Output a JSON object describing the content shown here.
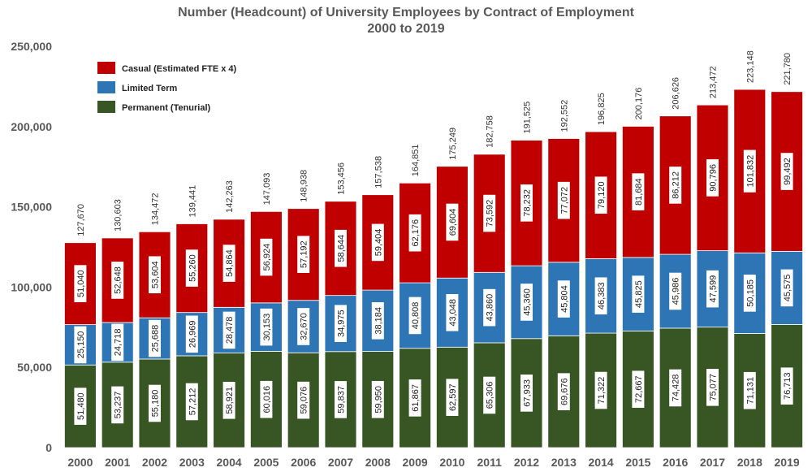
{
  "chart_data": {
    "type": "stacked-bar",
    "title": "Number (Headcount) of University Employees by Contract of Employment",
    "subtitle": "2000 to 2019",
    "xlabel": "",
    "ylabel": "",
    "ylim": [
      0,
      250000
    ],
    "yticks": [
      "0",
      "50,000",
      "100,000",
      "150,000",
      "200,000",
      "250,000"
    ],
    "ytick_values": [
      0,
      50000,
      100000,
      150000,
      200000,
      250000
    ],
    "grid": false,
    "legend_position": "top-left",
    "categories": [
      "2000",
      "2001",
      "2002",
      "2003",
      "2004",
      "2005",
      "2006",
      "2007",
      "2008",
      "2009",
      "2010",
      "2011",
      "2012",
      "2013",
      "2014",
      "2015",
      "2016",
      "2017",
      "2018",
      "2019"
    ],
    "series": [
      {
        "name": "Permanent (Tenurial)",
        "color": "#375623",
        "values": [
          51480,
          53237,
          55180,
          57212,
          58921,
          60016,
          59076,
          59837,
          59950,
          61867,
          62597,
          65306,
          67933,
          69676,
          71322,
          72667,
          74428,
          75077,
          71131,
          76713
        ],
        "labels": [
          "51,480",
          "53,237",
          "55,180",
          "57,212",
          "58,921",
          "60,016",
          "59,076",
          "59,837",
          "59,950",
          "61,867",
          "62,597",
          "65,306",
          "67,933",
          "69,676",
          "71,322",
          "72,667",
          "74,428",
          "75,077",
          "71,131",
          "76,713"
        ]
      },
      {
        "name": "Limited Term",
        "color": "#2e75b6",
        "values": [
          25150,
          24718,
          25688,
          26969,
          28478,
          30153,
          32670,
          34975,
          38184,
          40808,
          43048,
          43860,
          45360,
          45804,
          46383,
          45825,
          45986,
          47599,
          50185,
          45575
        ],
        "labels": [
          "25,150",
          "24,718",
          "25,688",
          "26,969",
          "28,478",
          "30,153",
          "32,670",
          "34,975",
          "38,184",
          "40,808",
          "43,048",
          "43,860",
          "45,360",
          "45,804",
          "46,383",
          "45,825",
          "45,986",
          "47,599",
          "50,185",
          "45,575"
        ]
      },
      {
        "name": "Casual (Estimated FTE x 4)",
        "color": "#c00000",
        "values": [
          51040,
          52648,
          53604,
          55260,
          54864,
          56924,
          57192,
          58644,
          59404,
          62176,
          69604,
          73592,
          78232,
          77072,
          79120,
          81684,
          86212,
          90796,
          101832,
          99492
        ],
        "labels": [
          "51,040",
          "52,648",
          "53,604",
          "55,260",
          "54,864",
          "56,924",
          "57,192",
          "58,644",
          "59,404",
          "62,176",
          "69,604",
          "73,592",
          "78,232",
          "77,072",
          "79,120",
          "81,684",
          "86,212",
          "90,796",
          "101,832",
          "99,492"
        ]
      }
    ],
    "totals": [
      127670,
      130603,
      134472,
      139441,
      142263,
      147093,
      148938,
      153456,
      157538,
      164851,
      175249,
      182758,
      191525,
      192552,
      196825,
      200176,
      206626,
      213472,
      223148,
      221780
    ],
    "total_labels": [
      "127,670",
      "130,603",
      "134,472",
      "139,441",
      "142,263",
      "147,093",
      "148,938",
      "153,456",
      "157,538",
      "164,851",
      "175,249",
      "182,758",
      "191,525",
      "192,552",
      "196,825",
      "200,176",
      "206,626",
      "213,472",
      "223,148",
      "221,780"
    ],
    "legend_order": [
      "Casual (Estimated FTE x 4)",
      "Limited Term",
      "Permanent (Tenurial)"
    ]
  }
}
